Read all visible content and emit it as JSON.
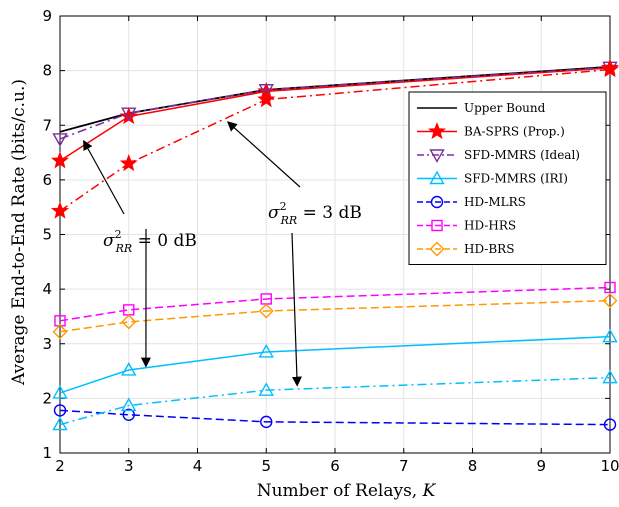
{
  "chart_data": {
    "type": "line",
    "xlabel": "Number of Relays, K",
    "xlabel_text": "Number of Relays, ",
    "xlabel_var": "K",
    "ylabel": "Average End-to-End Rate (bits/c.u.)",
    "xlim": [
      2,
      10
    ],
    "ylim": [
      1,
      9
    ],
    "xticks": [
      2,
      3,
      4,
      5,
      6,
      7,
      8,
      9,
      10
    ],
    "yticks": [
      1,
      2,
      3,
      4,
      5,
      6,
      7,
      8,
      9
    ],
    "grid": true,
    "legend_position": "right",
    "x": [
      2,
      3,
      5,
      10
    ],
    "series": [
      {
        "name": "Upper Bound",
        "variant": "",
        "color": "#000000",
        "marker": "none",
        "dash": "solid",
        "values": [
          6.88,
          7.22,
          7.65,
          8.07
        ]
      },
      {
        "name": "BA-SPRS (Prop.)",
        "variant": "σ²RR = 0 dB",
        "color": "#ff0000",
        "marker": "star",
        "dash": "solid",
        "values": [
          6.35,
          7.16,
          7.62,
          8.05
        ]
      },
      {
        "name": "SFD-MMRS (Ideal)",
        "variant": "",
        "color": "#7b2fa0",
        "marker": "triangle-down",
        "dash": "dashdot",
        "values": [
          6.75,
          7.22,
          7.65,
          8.06
        ]
      },
      {
        "name": "SFD-MMRS (IRI)",
        "variant": "σ²RR = 0 dB",
        "color": "#00bfff",
        "marker": "triangle-up",
        "dash": "solid",
        "values": [
          2.1,
          2.52,
          2.85,
          3.13
        ]
      },
      {
        "name": "HD-MLRS",
        "variant": "",
        "color": "#0000ff",
        "marker": "circle",
        "dash": "dashed",
        "values": [
          1.78,
          1.7,
          1.57,
          1.52
        ]
      },
      {
        "name": "HD-HRS",
        "variant": "",
        "color": "#ff00ff",
        "marker": "square",
        "dash": "dashed",
        "values": [
          3.42,
          3.62,
          3.82,
          4.03
        ]
      },
      {
        "name": "HD-BRS",
        "variant": "",
        "color": "#ff9900",
        "marker": "diamond",
        "dash": "dashed",
        "values": [
          3.22,
          3.4,
          3.6,
          3.79
        ]
      },
      {
        "name": "BA-SPRS (Prop.)",
        "variant": "σ²RR = 3 dB",
        "color": "#ff0000",
        "marker": "star",
        "dash": "dashdot",
        "values": [
          5.43,
          6.3,
          7.47,
          8.02
        ]
      },
      {
        "name": "SFD-MMRS (IRI)",
        "variant": "σ²RR = 3 dB",
        "color": "#00bfff",
        "marker": "triangle-up",
        "dash": "dashdot",
        "values": [
          1.52,
          1.87,
          2.15,
          2.38
        ]
      }
    ],
    "legend": [
      "Upper Bound",
      "BA-SPRS (Prop.)",
      "SFD-MMRS (Ideal)",
      "SFD-MMRS (IRI)",
      "HD-MLRS",
      "HD-HRS",
      "HD-BRS"
    ],
    "annotations": [
      {
        "label_prefix": "σ",
        "label_sub": "RR",
        "label_sup": "2",
        "label_value": " = 0 dB",
        "arrows_to": [
          [
            2.35,
            6.7
          ],
          [
            3.25,
            2.6
          ]
        ]
      },
      {
        "label_prefix": "σ",
        "label_sub": "RR",
        "label_sup": "2",
        "label_value": " = 3 dB",
        "arrows_to": [
          [
            4.45,
            7.05
          ],
          [
            5.45,
            2.25
          ]
        ]
      }
    ]
  }
}
